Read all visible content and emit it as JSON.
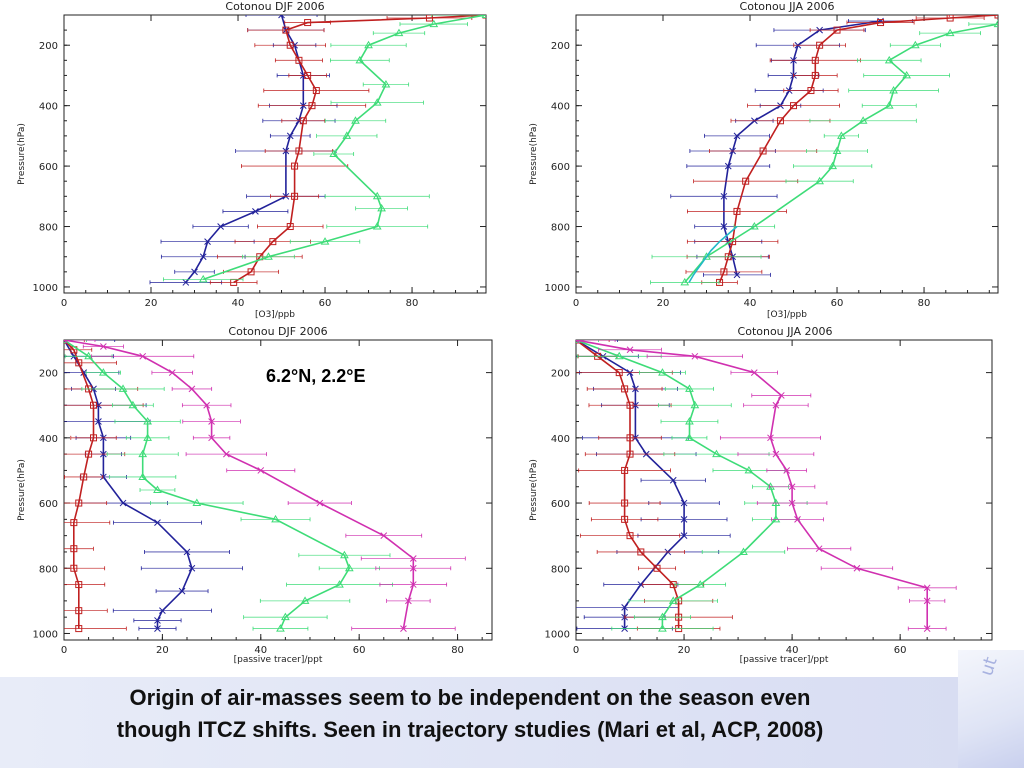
{
  "caption": {
    "line1": "Origin of air-masses seem to be independent on the season even",
    "line2": "though ITCZ shifts. Seen in trajectory studies (Mari et al, ACP, 2008)"
  },
  "location_label": "6.2°N, 2.2°E",
  "corner_text": "ut",
  "colors": {
    "blue": "#22229a",
    "red": "#c02020",
    "green": "#3edc78",
    "magenta": "#d030b0",
    "cyan": "#22b8c8"
  },
  "chart_data": [
    {
      "type": "line",
      "title": "Cotonou DJF 2006",
      "xlabel": "[O3]/ppb",
      "ylabel": "Pressure(hPa)",
      "xlim": [
        0,
        97
      ],
      "ylim": [
        100,
        1020
      ],
      "xticks": [
        0,
        20,
        40,
        60,
        80
      ],
      "yticks": [
        200,
        400,
        600,
        800,
        1000
      ],
      "series": [
        {
          "color": "#22229a",
          "marker": "x",
          "x": [
            50,
            51,
            53,
            55,
            55,
            54,
            52,
            51,
            51,
            44,
            36,
            33,
            32,
            30,
            28
          ],
          "y": [
            100,
            150,
            200,
            300,
            400,
            450,
            500,
            550,
            700,
            750,
            800,
            850,
            900,
            950,
            985
          ]
        },
        {
          "color": "#c02020",
          "marker": "square",
          "x": [
            97,
            84,
            56,
            51,
            52,
            54,
            56,
            58,
            57,
            55,
            54,
            53,
            53,
            52,
            48,
            45,
            43,
            39
          ],
          "y": [
            100,
            110,
            125,
            150,
            200,
            250,
            300,
            350,
            400,
            450,
            550,
            600,
            700,
            800,
            850,
            900,
            950,
            985
          ]
        },
        {
          "color": "#3edc78",
          "marker": "triangle",
          "x": [
            97,
            85,
            77,
            70,
            68,
            74,
            72,
            67,
            65,
            62,
            72,
            73,
            72,
            60,
            47,
            32
          ],
          "y": [
            100,
            130,
            160,
            200,
            250,
            330,
            390,
            450,
            500,
            560,
            700,
            740,
            800,
            850,
            900,
            975
          ]
        }
      ]
    },
    {
      "type": "line",
      "title": "Cotonou JJA 2006",
      "xlabel": "[O3]/ppb",
      "ylabel": "Pressure(hPa)",
      "xlim": [
        0,
        97
      ],
      "ylim": [
        100,
        1020
      ],
      "xticks": [
        0,
        20,
        40,
        60,
        80
      ],
      "yticks": [
        200,
        400,
        600,
        800,
        1000
      ],
      "series": [
        {
          "color": "#22229a",
          "marker": "x",
          "x": [
            70,
            56,
            51,
            50,
            50,
            49,
            47,
            41,
            37,
            36,
            35,
            34,
            34,
            35,
            36,
            37
          ],
          "y": [
            120,
            150,
            200,
            250,
            300,
            350,
            400,
            450,
            500,
            550,
            600,
            700,
            800,
            850,
            900,
            960
          ]
        },
        {
          "color": "#c02020",
          "marker": "square",
          "x": [
            97,
            86,
            70,
            60,
            56,
            55,
            55,
            54,
            50,
            47,
            43,
            39,
            37,
            36,
            35,
            34,
            33
          ],
          "y": [
            100,
            110,
            125,
            150,
            200,
            250,
            300,
            350,
            400,
            450,
            550,
            650,
            750,
            850,
            900,
            950,
            985
          ]
        },
        {
          "color": "#3edc78",
          "marker": "triangle",
          "x": [
            97,
            86,
            78,
            72,
            76,
            73,
            72,
            66,
            61,
            60,
            59,
            56,
            41,
            30,
            25
          ],
          "y": [
            130,
            160,
            200,
            250,
            300,
            350,
            400,
            450,
            500,
            550,
            600,
            650,
            800,
            900,
            985
          ]
        },
        {
          "color": "#22b8c8",
          "marker": "none",
          "x": [
            37,
            33,
            31,
            30,
            29,
            28,
            27,
            26
          ],
          "y": [
            800,
            850,
            880,
            900,
            920,
            940,
            960,
            985
          ]
        }
      ]
    },
    {
      "type": "line",
      "title": "Cotonou DJF 2006",
      "xlabel": "[passive tracer]/ppt",
      "ylabel": "Pressure(hPa)",
      "xlim": [
        0,
        87
      ],
      "ylim": [
        100,
        1020
      ],
      "xticks": [
        0,
        20,
        40,
        60,
        80
      ],
      "yticks": [
        200,
        400,
        600,
        800,
        1000
      ],
      "series": [
        {
          "color": "#22229a",
          "marker": "x",
          "x": [
            0,
            2,
            4,
            6,
            7,
            7,
            8,
            8,
            8,
            12,
            19,
            25,
            26,
            24,
            20,
            19,
            19
          ],
          "y": [
            100,
            150,
            200,
            250,
            300,
            350,
            400,
            450,
            520,
            600,
            660,
            750,
            800,
            870,
            930,
            960,
            985
          ]
        },
        {
          "color": "#c02020",
          "marker": "square",
          "x": [
            0,
            2,
            3,
            5,
            6,
            6,
            5,
            4,
            3,
            2,
            2,
            2,
            3,
            3,
            3
          ],
          "y": [
            100,
            130,
            170,
            250,
            300,
            400,
            450,
            520,
            600,
            660,
            740,
            800,
            850,
            930,
            985
          ]
        },
        {
          "color": "#3edc78",
          "marker": "triangle",
          "x": [
            0,
            5,
            8,
            12,
            14,
            17,
            17,
            16,
            16,
            19,
            27,
            43,
            57,
            58,
            56,
            49,
            45,
            44
          ],
          "y": [
            100,
            150,
            200,
            250,
            300,
            350,
            400,
            450,
            520,
            560,
            600,
            650,
            760,
            800,
            850,
            900,
            950,
            985
          ]
        },
        {
          "color": "#d030b0",
          "marker": "x",
          "x": [
            0,
            8,
            16,
            22,
            26,
            29,
            30,
            30,
            33,
            40,
            52,
            65,
            71,
            71,
            71,
            70,
            69
          ],
          "y": [
            100,
            120,
            150,
            200,
            250,
            300,
            350,
            400,
            450,
            500,
            600,
            700,
            770,
            800,
            850,
            900,
            985
          ]
        }
      ]
    },
    {
      "type": "line",
      "title": "Cotonou JJA 2006",
      "xlabel": "[passive tracer]/ppt",
      "ylabel": "Pressure(hPa)",
      "xlim": [
        0,
        77
      ],
      "ylim": [
        100,
        1020
      ],
      "xticks": [
        0,
        20,
        40,
        60
      ],
      "yticks": [
        200,
        400,
        600,
        800,
        1000
      ],
      "series": [
        {
          "color": "#22229a",
          "marker": "x",
          "x": [
            0,
            5,
            10,
            11,
            11,
            11,
            13,
            18,
            20,
            20,
            20,
            17,
            12,
            9,
            9,
            9
          ],
          "y": [
            100,
            150,
            200,
            250,
            300,
            400,
            450,
            530,
            600,
            650,
            700,
            750,
            850,
            920,
            950,
            985
          ]
        },
        {
          "color": "#c02020",
          "marker": "square",
          "x": [
            0,
            4,
            8,
            9,
            10,
            10,
            10,
            9,
            9,
            9,
            10,
            12,
            15,
            18,
            19,
            19,
            19
          ],
          "y": [
            100,
            150,
            200,
            250,
            300,
            400,
            450,
            500,
            600,
            650,
            700,
            750,
            800,
            850,
            900,
            950,
            985
          ]
        },
        {
          "color": "#3edc78",
          "marker": "triangle",
          "x": [
            0,
            8,
            16,
            21,
            22,
            21,
            21,
            26,
            32,
            36,
            37,
            37,
            31,
            23,
            18,
            16,
            16
          ],
          "y": [
            100,
            150,
            200,
            250,
            300,
            350,
            400,
            450,
            500,
            550,
            600,
            650,
            750,
            850,
            900,
            950,
            985
          ]
        },
        {
          "color": "#d030b0",
          "marker": "x",
          "x": [
            0,
            10,
            22,
            33,
            38,
            37,
            36,
            37,
            39,
            40,
            40,
            41,
            45,
            52,
            65,
            65,
            65
          ],
          "y": [
            100,
            130,
            150,
            200,
            270,
            300,
            400,
            450,
            500,
            550,
            600,
            650,
            740,
            800,
            860,
            900,
            985
          ]
        }
      ]
    }
  ]
}
